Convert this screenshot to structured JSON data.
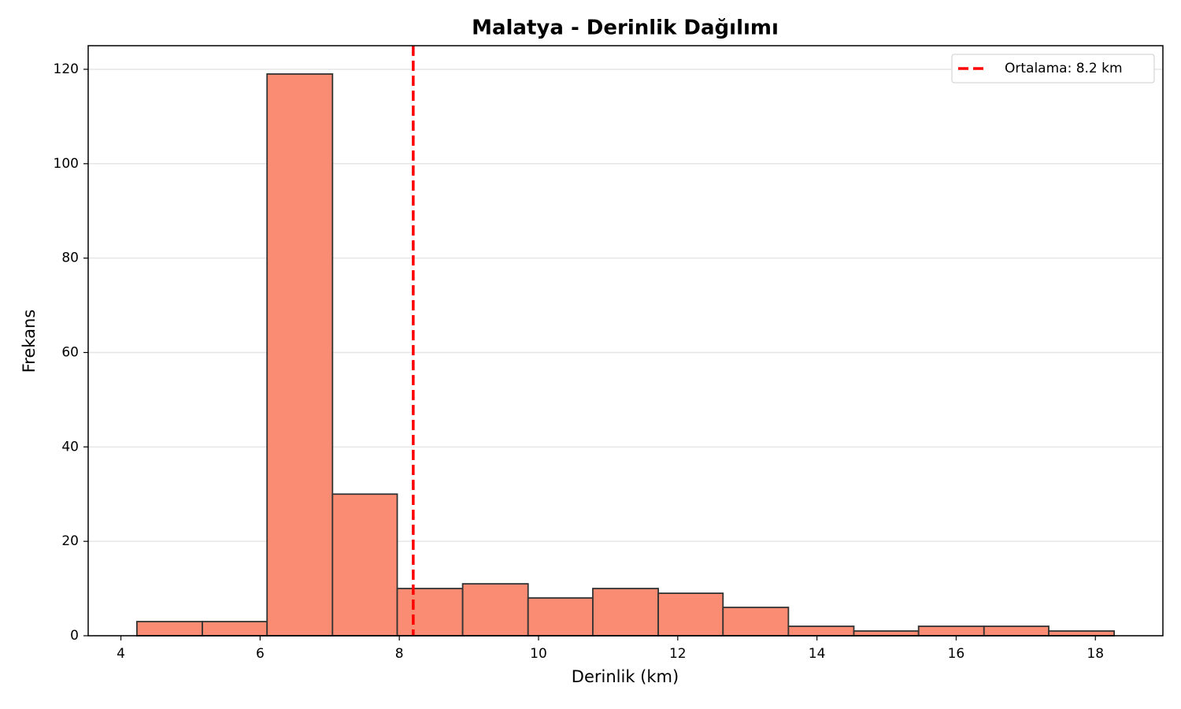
{
  "chart_data": {
    "type": "histogram",
    "title": "Malatya - Derinlik Dağılımı",
    "xlabel": "Derinlik (km)",
    "ylabel": "Frekans",
    "bins": [
      4.23,
      5.17,
      6.1,
      7.04,
      7.97,
      8.91,
      9.85,
      10.78,
      11.72,
      12.65,
      13.59,
      14.53,
      15.46,
      16.4,
      17.33,
      18.27
    ],
    "values": [
      3,
      3,
      119,
      30,
      10,
      11,
      8,
      10,
      9,
      6,
      2,
      1,
      2,
      2,
      1
    ],
    "color": "#fa8c73",
    "edgecolor": "#333333",
    "xlim": [
      3.53,
      18.97
    ],
    "ylim": [
      0,
      125
    ],
    "xticks": [
      4,
      6,
      8,
      10,
      12,
      14,
      16,
      18
    ],
    "yticks": [
      0,
      20,
      40,
      60,
      80,
      100,
      120
    ],
    "grid": "y",
    "mean_line": {
      "value": 8.2,
      "label": "Ortalama: 8.2 km",
      "color": "#ff0000"
    },
    "legend": "upper right"
  }
}
